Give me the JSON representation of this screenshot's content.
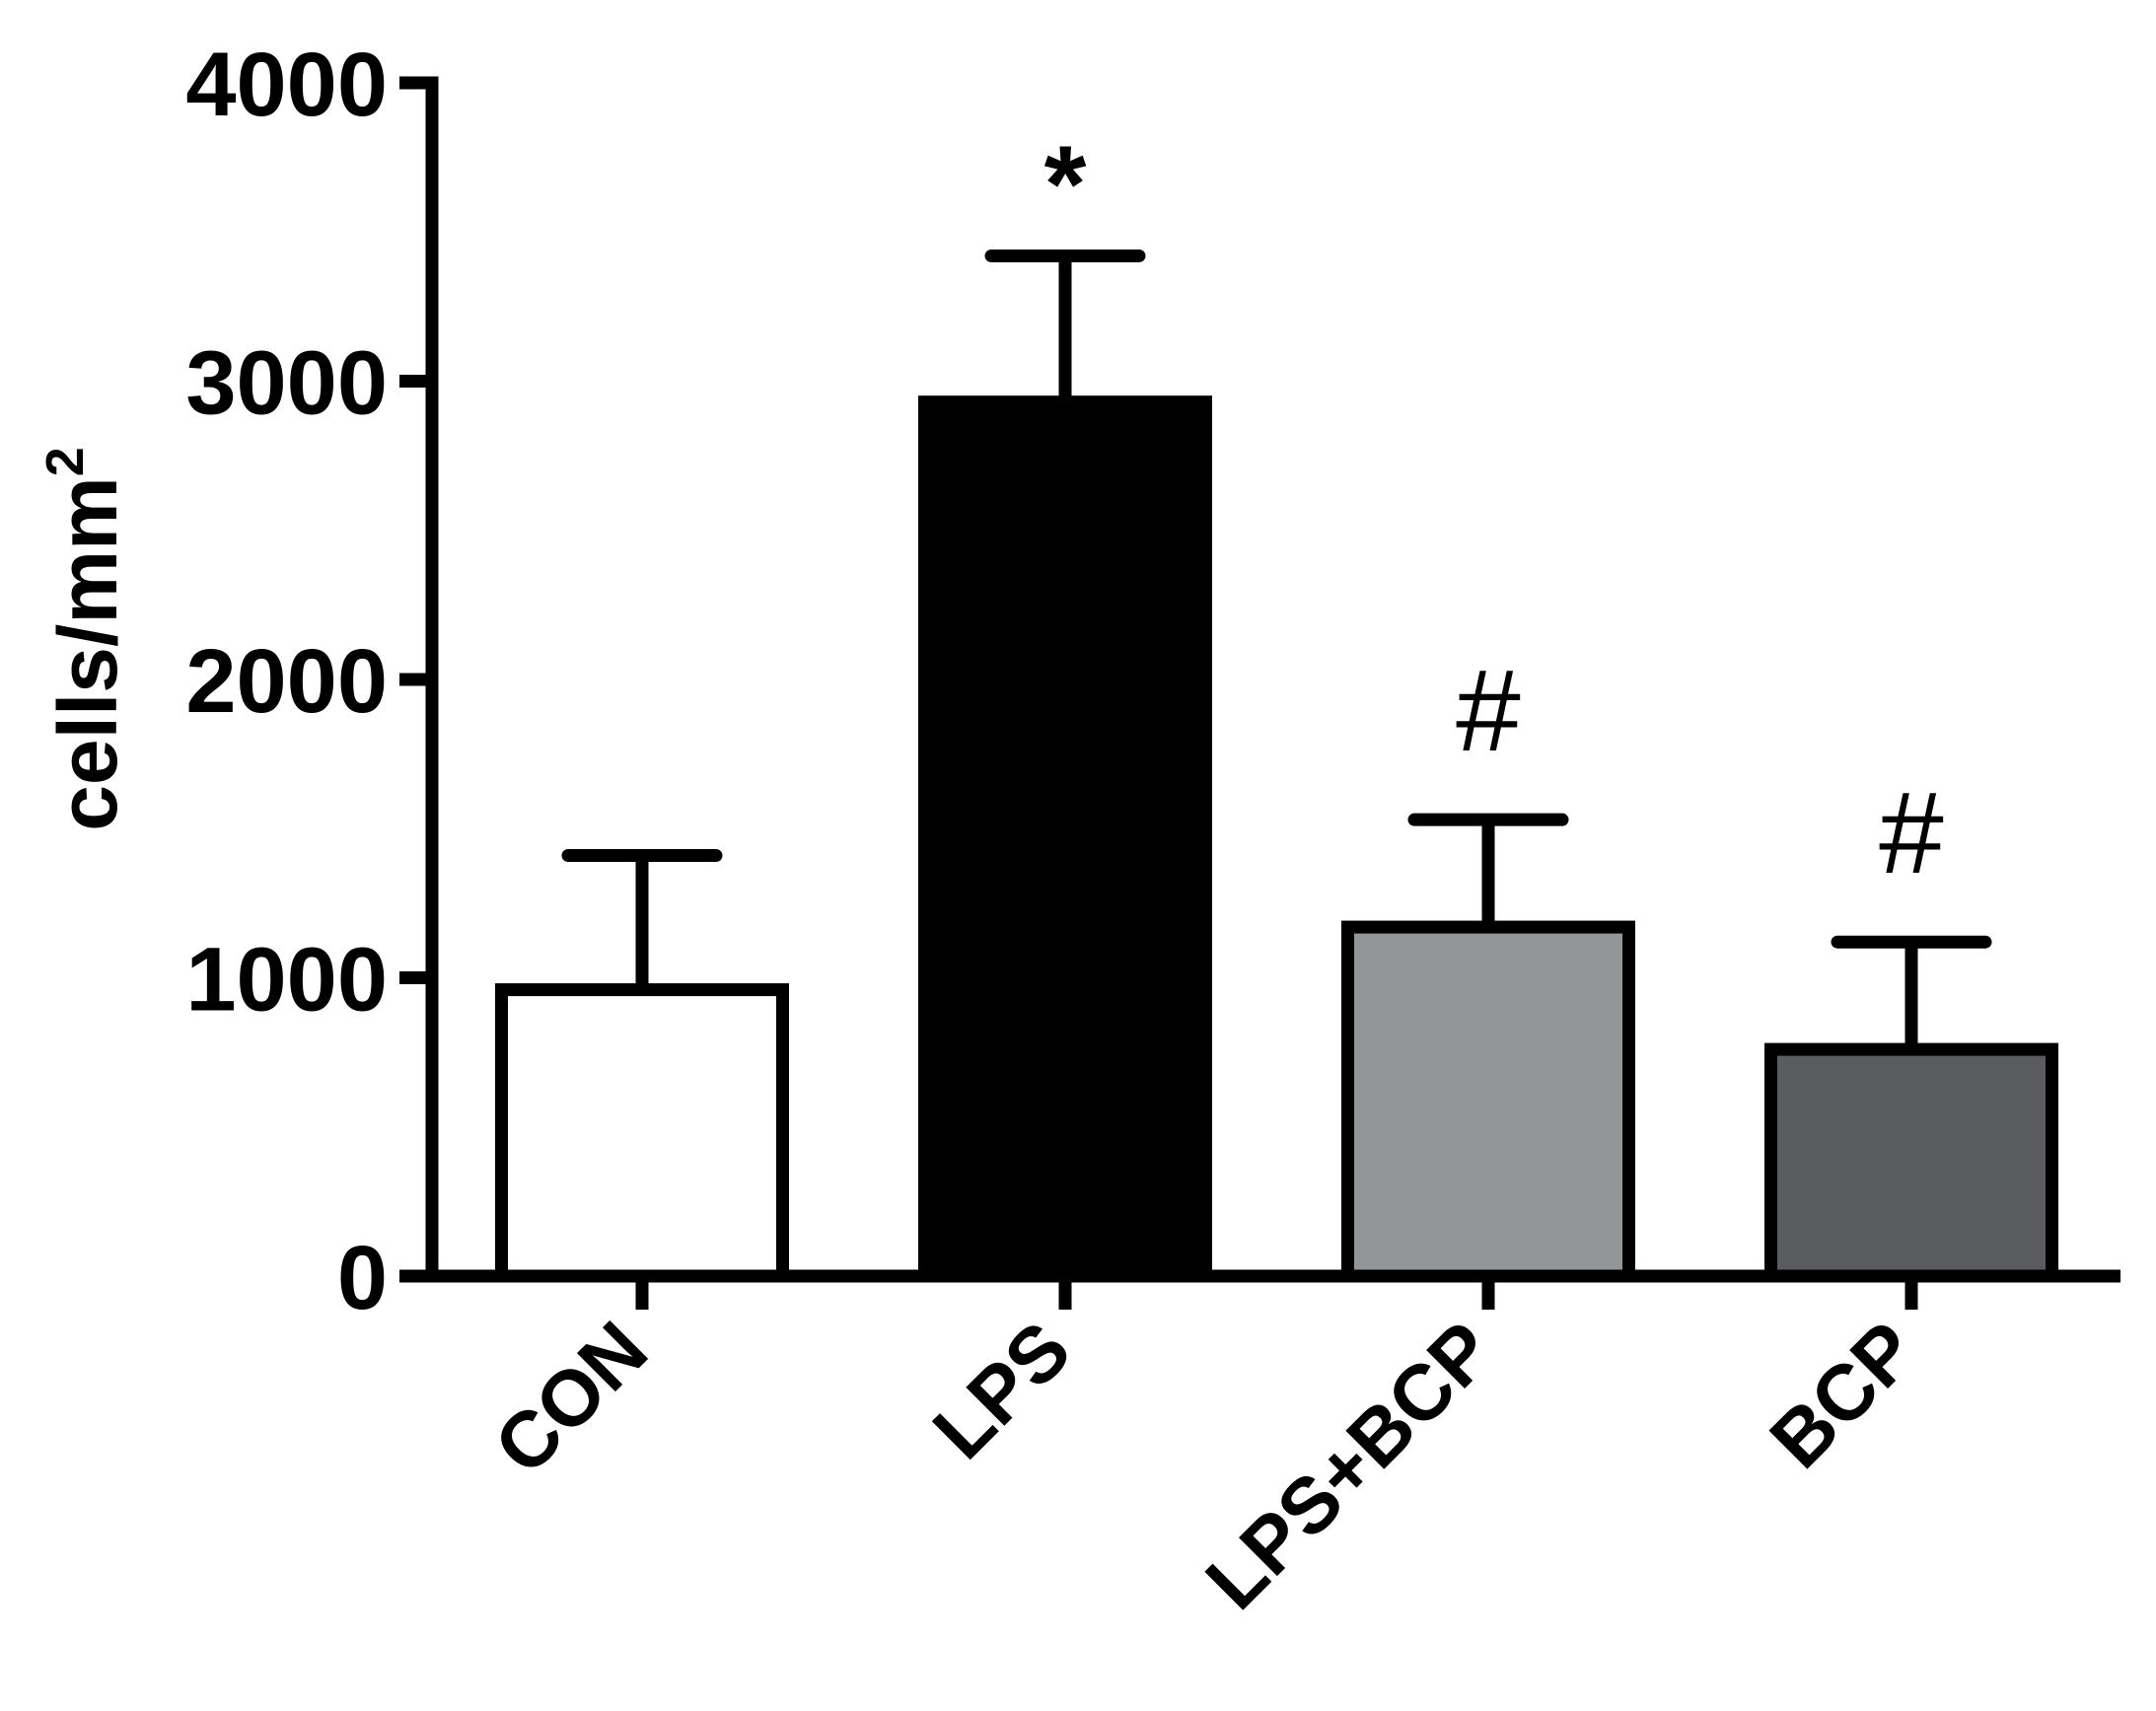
{
  "chart_data": {
    "type": "bar",
    "title": "",
    "xlabel": "",
    "ylabel": "cells/mm",
    "ylabel_superscript": "2",
    "ylim": [
      0,
      4000
    ],
    "yticks": [
      {
        "value": 0,
        "label": "0"
      },
      {
        "value": 1000,
        "label": "1000"
      },
      {
        "value": 2000,
        "label": "2000"
      },
      {
        "value": 3000,
        "label": "3000"
      },
      {
        "value": 4000,
        "label": "4000"
      }
    ],
    "grid": false,
    "legend": "none",
    "categories": [
      "CON",
      "LPS",
      "LPS+BCP",
      "BCP"
    ],
    "values": [
      960,
      2930,
      1170,
      760
    ],
    "errors": [
      450,
      490,
      360,
      360
    ],
    "colors": [
      "#ffffff",
      "#000000",
      "#939698",
      "#5a5c5f"
    ],
    "annotations": [
      "",
      "*",
      "#",
      "#"
    ]
  }
}
